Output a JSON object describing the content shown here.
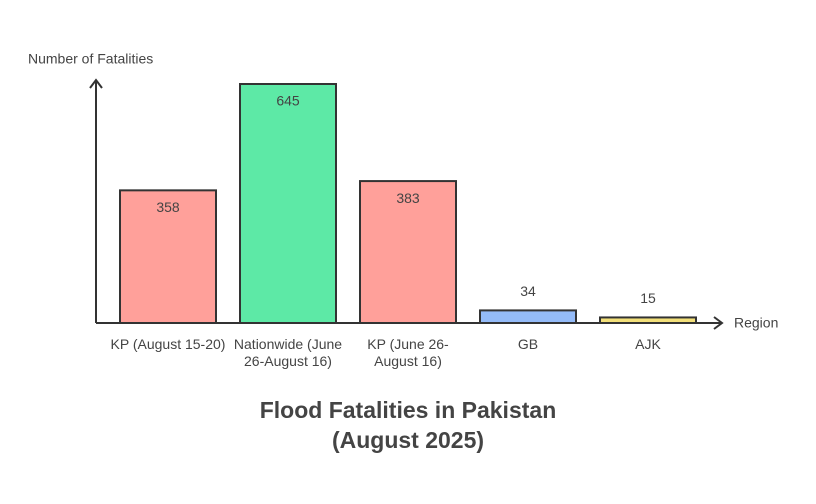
{
  "chart_data": {
    "type": "bar",
    "title": "Flood Fatalities in Pakistan (August 2025)",
    "y_label": "Number of Fatalities",
    "x_label": "Region",
    "categories": [
      "KP (August 15-20)",
      "Nationwide (June 26-August 16)",
      "KP (June 26-August 16)",
      "GB",
      "AJK"
    ],
    "values": [
      358,
      645,
      383,
      34,
      15
    ],
    "colors": [
      "#ffa09a",
      "#5de9a6",
      "#ffa09a",
      "#94bbf8",
      "#f3e07a"
    ],
    "ylim": [
      0,
      645
    ]
  }
}
